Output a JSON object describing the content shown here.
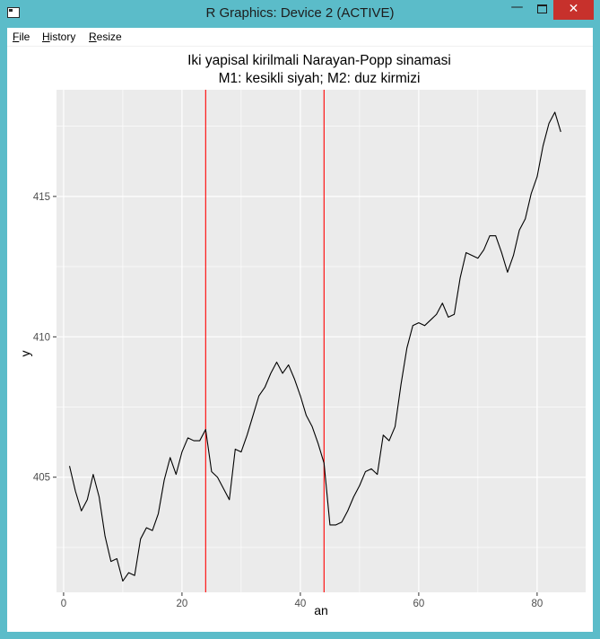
{
  "window": {
    "title": "R Graphics: Device 2 (ACTIVE)",
    "minimize_glyph": "—",
    "close_glyph": "✕"
  },
  "menu": [
    {
      "hot": "F",
      "rest": "ile"
    },
    {
      "hot": "H",
      "rest": "istory"
    },
    {
      "hot": "R",
      "rest": "esize"
    }
  ],
  "chart_data": {
    "type": "line",
    "title": "Iki yapisal kirilmali Narayan-Popp sinamasi",
    "subtitle": "M1: kesikli siyah; M2: duz kirmizi",
    "xlabel": "an",
    "ylabel": "y",
    "xlim": [
      -1.2,
      88.2
    ],
    "ylim": [
      400.9,
      418.8
    ],
    "xticks": [
      0,
      20,
      40,
      60,
      80
    ],
    "yticks": [
      405,
      410,
      415
    ],
    "grid": true,
    "background": "#ebebeb",
    "grid_color": "#ffffff",
    "series": [
      {
        "color": "#000000",
        "x": [
          1,
          2,
          3,
          4,
          5,
          6,
          7,
          8,
          9,
          10,
          11,
          12,
          13,
          14,
          15,
          16,
          17,
          18,
          19,
          20,
          21,
          22,
          23,
          24,
          25,
          26,
          27,
          28,
          29,
          30,
          31,
          32,
          33,
          34,
          35,
          36,
          37,
          38,
          39,
          40,
          41,
          42,
          43,
          44,
          45,
          46,
          47,
          48,
          49,
          50,
          51,
          52,
          53,
          54,
          55,
          56,
          57,
          58,
          59,
          60,
          61,
          62,
          63,
          64,
          65,
          66,
          67,
          68,
          69,
          70,
          71,
          72,
          73,
          74,
          75,
          76,
          77,
          78,
          79,
          80,
          81,
          82,
          83,
          84
        ],
        "values": [
          405.4,
          404.5,
          403.8,
          404.2,
          405.1,
          404.3,
          402.9,
          402.0,
          402.1,
          401.3,
          401.6,
          401.5,
          402.8,
          403.2,
          403.1,
          403.7,
          404.9,
          405.7,
          405.1,
          405.9,
          406.4,
          406.3,
          406.3,
          406.7,
          405.2,
          405.0,
          404.6,
          404.2,
          406.0,
          405.9,
          406.5,
          407.2,
          407.9,
          408.2,
          408.7,
          409.1,
          408.7,
          409.0,
          408.5,
          407.9,
          407.2,
          406.8,
          406.2,
          405.5,
          403.3,
          403.3,
          403.4,
          403.8,
          404.3,
          404.7,
          405.2,
          405.3,
          405.1,
          406.5,
          406.3,
          406.8,
          408.3,
          409.6,
          410.4,
          410.5,
          410.4,
          410.6,
          410.8,
          411.2,
          410.7,
          410.8,
          412.1,
          413.0,
          412.9,
          412.8,
          413.1,
          413.6,
          413.6,
          413.0,
          412.3,
          412.9,
          413.8,
          414.2,
          415.1,
          415.7,
          416.8,
          417.6,
          418.0,
          417.3
        ]
      }
    ],
    "vlines": [
      {
        "x": 24,
        "color": "#ff0000"
      },
      {
        "x": 44,
        "color": "#ff0000"
      }
    ]
  }
}
